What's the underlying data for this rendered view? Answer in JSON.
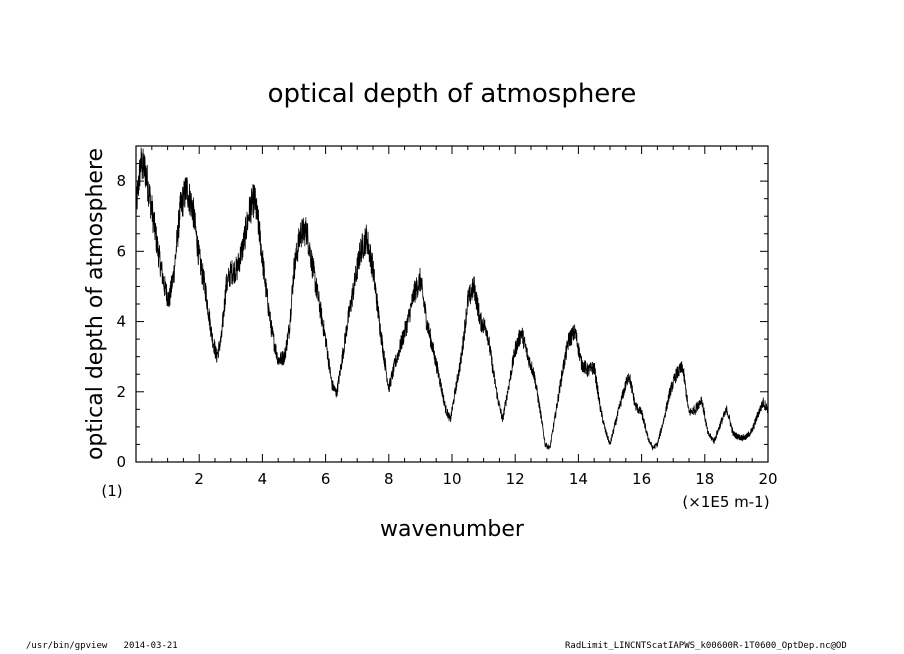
{
  "footer": {
    "left": "/usr/bin/gpview   2014-03-21",
    "right": "RadLimit_LINCNTScatIAPWS_k00600R-1T0600_OptDep.nc@OD"
  },
  "chart_data": {
    "type": "line",
    "title": "optical depth of atmosphere",
    "xlabel": "wavenumber",
    "ylabel": "optical depth of atmosphere",
    "x_unit_label": "(×1E5 m-1)",
    "y_unit_label": "(1)",
    "xlim": [
      0,
      20
    ],
    "ylim": [
      0,
      9
    ],
    "x_ticks": [
      2,
      4,
      6,
      8,
      10,
      12,
      14,
      16,
      18,
      20
    ],
    "y_ticks": [
      0,
      2,
      4,
      6,
      8
    ],
    "line_color": "#000000",
    "grid": false,
    "series": [
      {
        "x": [
          0.0,
          0.15,
          0.3,
          0.5,
          0.7,
          0.9,
          1.05,
          1.2,
          1.4,
          1.6,
          1.8,
          2.0,
          2.2,
          2.4,
          2.55,
          2.7,
          2.85,
          3.0,
          3.2,
          3.4,
          3.6,
          3.75,
          3.9,
          4.1,
          4.3,
          4.5,
          4.7,
          4.85,
          5.0,
          5.2,
          5.4,
          5.6,
          5.8,
          6.0,
          6.2,
          6.35,
          6.5,
          6.7,
          6.9,
          7.1,
          7.3,
          7.5,
          7.7,
          7.85,
          8.0,
          8.2,
          8.4,
          8.6,
          8.8,
          9.0,
          9.2,
          9.4,
          9.6,
          9.8,
          9.95,
          10.1,
          10.3,
          10.5,
          10.7,
          10.9,
          11.1,
          11.3,
          11.45,
          11.6,
          11.8,
          12.0,
          12.2,
          12.4,
          12.6,
          12.8,
          12.95,
          13.1,
          13.3,
          13.5,
          13.7,
          13.9,
          14.1,
          14.3,
          14.5,
          14.7,
          14.85,
          15.0,
          15.2,
          15.4,
          15.6,
          15.8,
          16.0,
          16.2,
          16.35,
          16.5,
          16.7,
          16.9,
          17.1,
          17.3,
          17.5,
          17.7,
          17.9,
          18.1,
          18.3,
          18.5,
          18.7,
          18.9,
          19.1,
          19.3,
          19.5,
          19.7,
          19.85,
          20.0
        ],
        "y": [
          7.2,
          8.5,
          8.3,
          7.2,
          6.0,
          5.0,
          4.6,
          5.4,
          7.2,
          7.8,
          7.2,
          5.8,
          4.9,
          3.6,
          3.0,
          3.5,
          5.0,
          5.4,
          5.5,
          6.2,
          7.2,
          7.5,
          6.6,
          5.0,
          3.7,
          2.9,
          3.0,
          3.8,
          5.5,
          6.5,
          6.6,
          5.5,
          4.5,
          3.5,
          2.2,
          1.95,
          2.8,
          4.0,
          5.0,
          6.0,
          6.4,
          5.5,
          4.0,
          3.0,
          2.1,
          2.8,
          3.4,
          4.0,
          4.8,
          5.2,
          4.0,
          3.2,
          2.4,
          1.5,
          1.2,
          2.0,
          3.0,
          4.6,
          5.0,
          4.0,
          3.8,
          2.6,
          1.8,
          1.2,
          2.2,
          3.2,
          3.7,
          3.0,
          2.5,
          1.4,
          0.5,
          0.4,
          1.5,
          2.6,
          3.5,
          3.7,
          2.8,
          2.6,
          2.7,
          1.5,
          0.9,
          0.5,
          1.2,
          1.9,
          2.5,
          1.6,
          1.4,
          0.7,
          0.4,
          0.5,
          1.2,
          2.0,
          2.5,
          2.7,
          1.4,
          1.5,
          1.8,
          0.8,
          0.6,
          1.1,
          1.5,
          0.8,
          0.7,
          0.7,
          0.9,
          1.4,
          1.7,
          1.5
        ]
      }
    ]
  }
}
